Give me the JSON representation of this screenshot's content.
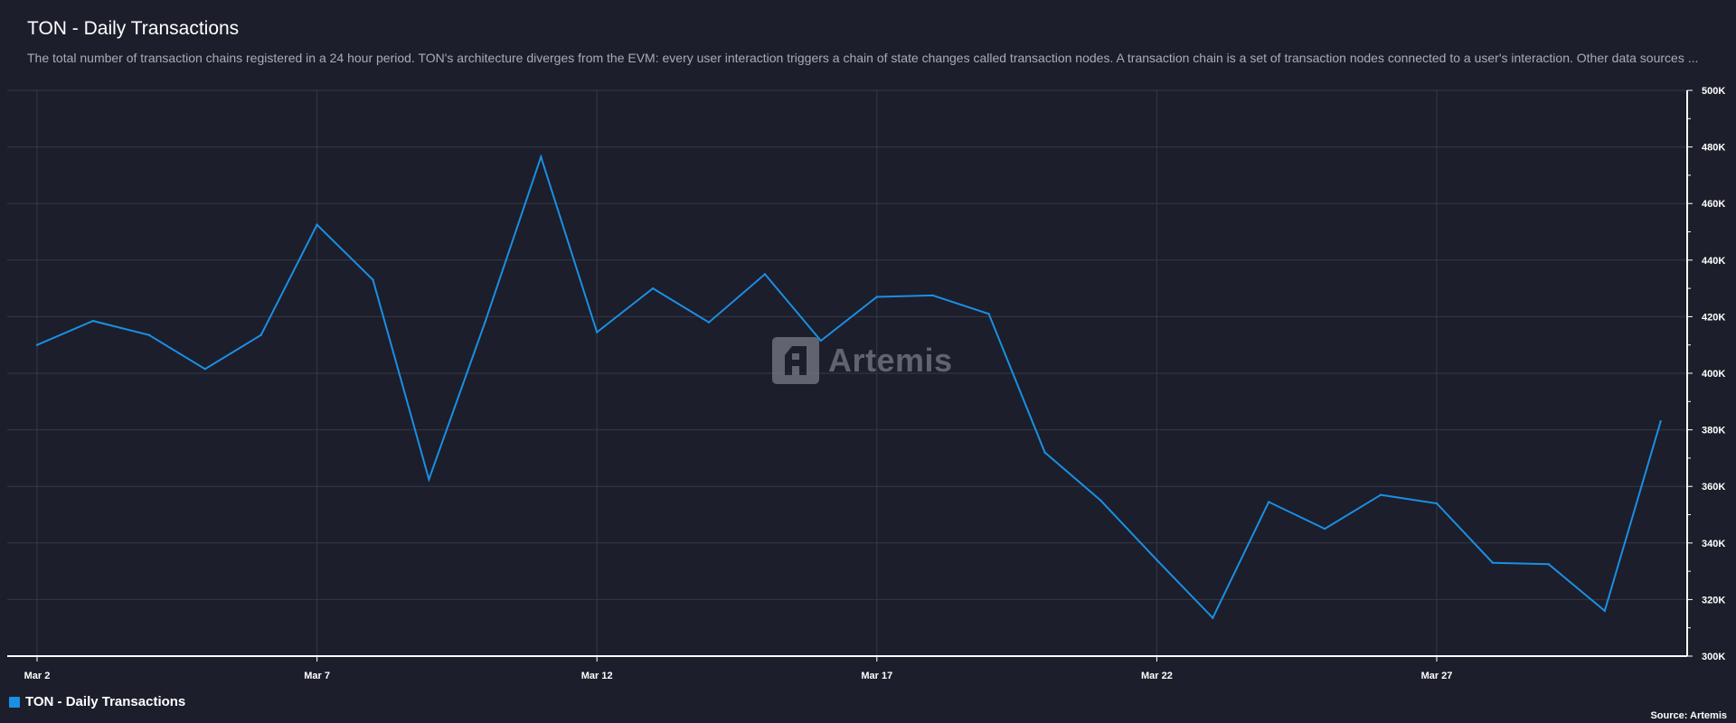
{
  "header": {
    "title": "TON - Daily Transactions",
    "description": "The total number of transaction chains registered in a 24 hour period. TON's architecture diverges from the EVM: every user interaction triggers a chain of state changes called transaction nodes. A transaction chain is a set of transaction nodes connected to a user's interaction. Other data sources ..."
  },
  "watermark": {
    "text": "Artemis"
  },
  "legend": {
    "label": "TON - Daily Transactions",
    "color": "#1a8fe3"
  },
  "footer": {
    "source": "Source: Artemis"
  },
  "colors": {
    "background": "#1c1e2b",
    "grid": "#353848",
    "line": "#1a8fe3",
    "axis": "#ffffff"
  },
  "chart_data": {
    "type": "line",
    "title": "TON - Daily Transactions",
    "x": [
      "Mar 2",
      "Mar 3",
      "Mar 4",
      "Mar 5",
      "Mar 6",
      "Mar 7",
      "Mar 8",
      "Mar 9",
      "Mar 10",
      "Mar 11",
      "Mar 12",
      "Mar 13",
      "Mar 14",
      "Mar 15",
      "Mar 16",
      "Mar 17",
      "Mar 18",
      "Mar 19",
      "Mar 20",
      "Mar 21",
      "Mar 22",
      "Mar 23",
      "Mar 24",
      "Mar 25",
      "Mar 26",
      "Mar 27",
      "Mar 28",
      "Mar 29",
      "Mar 30",
      "Mar 31"
    ],
    "x_tick_labels": [
      "Mar 2",
      "Mar 7",
      "Mar 12",
      "Mar 17",
      "Mar 22",
      "Mar 27"
    ],
    "series": [
      {
        "name": "TON - Daily Transactions",
        "color": "#1a8fe3",
        "values": [
          410000,
          418500,
          413500,
          401500,
          413500,
          452500,
          433000,
          362500,
          418000,
          476500,
          414500,
          430000,
          418000,
          435000,
          411500,
          427000,
          427500,
          421000,
          372000,
          355000,
          334000,
          313500,
          354500,
          345000,
          357000,
          354000,
          333000,
          332500,
          316000,
          383000
        ]
      }
    ],
    "y_ticks": [
      300000,
      320000,
      340000,
      360000,
      380000,
      400000,
      420000,
      440000,
      460000,
      480000,
      500000
    ],
    "y_tick_labels": [
      "300K",
      "320K",
      "340K",
      "360K",
      "380K",
      "400K",
      "420K",
      "440K",
      "460K",
      "480K",
      "500K"
    ],
    "ylim": [
      300000,
      500000
    ],
    "y_axis_side": "right",
    "grid": true,
    "legend": "bottom-left"
  }
}
